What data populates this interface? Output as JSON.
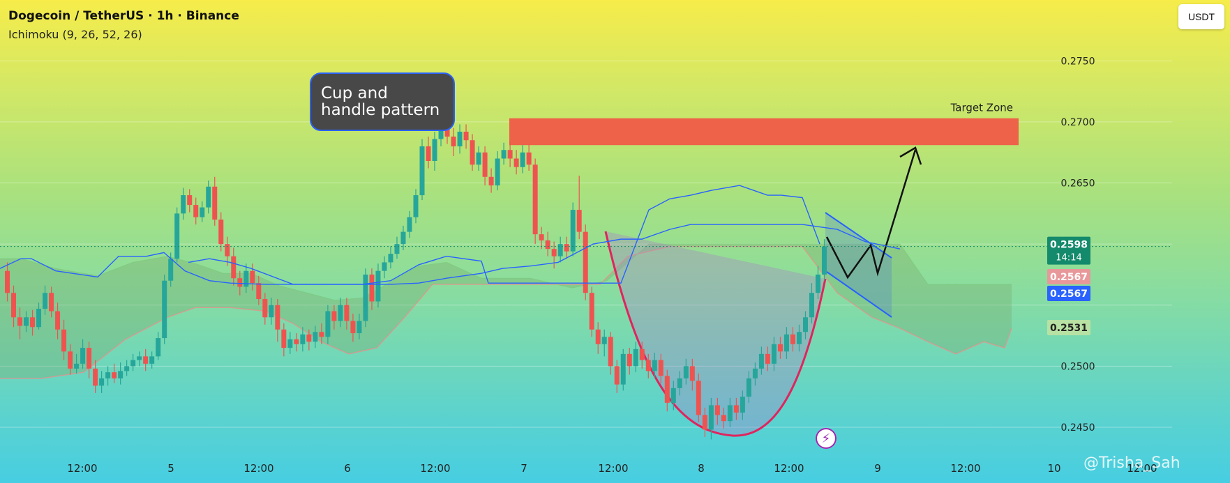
{
  "header": {
    "title": "Dogecoin / TetherUS · 1h · Binance",
    "indicator": "Ichimoku (9, 26, 52, 26)"
  },
  "currency_button": "USDT",
  "callout": "Cup and handle pattern",
  "target_label": "Target Zone",
  "watermark": "@Trisha_Sah",
  "flash_icon": "lightning-bolt-icon",
  "colors": {
    "up": "#26a69a",
    "down": "#ef5350",
    "target_zone": "#ef5b47",
    "cup": "#e0245e",
    "ichimoku_line": "#2962ff"
  },
  "chart_data": {
    "type": "candlestick",
    "ylim": [
      0.243,
      0.2785
    ],
    "y_ticks": [
      "0.2750",
      "0.2700",
      "0.2650",
      "0.2500",
      "0.2450"
    ],
    "x_ticks": [
      "12:00",
      "5",
      "12:00",
      "6",
      "12:00",
      "7",
      "12:00",
      "8",
      "12:00",
      "9",
      "12:00",
      "10",
      "12:00"
    ],
    "price_labels": [
      {
        "value": 0.2598,
        "text": "0.2598",
        "sub": "14:14",
        "color": "#138a6b"
      },
      {
        "value": 0.2567,
        "text": "0.2567",
        "color": "#e8989a"
      },
      {
        "value": 0.2567,
        "text": "0.2567",
        "color": "#2962ff"
      },
      {
        "value": 0.2531,
        "text": "0.2531",
        "color": "#b8e2a4"
      }
    ],
    "target_zone": {
      "from": 0.2681,
      "to": 0.2703
    },
    "candles": [
      [
        0.2578,
        0.256,
        0.2585,
        0.2553
      ],
      [
        0.256,
        0.254,
        0.2566,
        0.2532
      ],
      [
        0.254,
        0.2533,
        0.2548,
        0.2522
      ],
      [
        0.2533,
        0.254,
        0.2545,
        0.2528
      ],
      [
        0.254,
        0.2532,
        0.2546,
        0.2525
      ],
      [
        0.2532,
        0.2547,
        0.2552,
        0.253
      ],
      [
        0.2547,
        0.256,
        0.2566,
        0.2542
      ],
      [
        0.256,
        0.2545,
        0.2565,
        0.254
      ],
      [
        0.2545,
        0.253,
        0.2552,
        0.2522
      ],
      [
        0.253,
        0.2512,
        0.2538,
        0.2505
      ],
      [
        0.2512,
        0.2498,
        0.2518,
        0.2493
      ],
      [
        0.2498,
        0.2502,
        0.251,
        0.2494
      ],
      [
        0.2502,
        0.2515,
        0.2522,
        0.2498
      ],
      [
        0.2515,
        0.2498,
        0.252,
        0.249
      ],
      [
        0.2498,
        0.2484,
        0.2505,
        0.2478
      ],
      [
        0.2484,
        0.249,
        0.2496,
        0.2478
      ],
      [
        0.249,
        0.2495,
        0.25,
        0.2484
      ],
      [
        0.2495,
        0.249,
        0.2502,
        0.2486
      ],
      [
        0.249,
        0.2496,
        0.2503,
        0.2485
      ],
      [
        0.2496,
        0.25,
        0.2505,
        0.2492
      ],
      [
        0.25,
        0.2505,
        0.251,
        0.2496
      ],
      [
        0.2505,
        0.2508,
        0.2512,
        0.25
      ],
      [
        0.2508,
        0.2502,
        0.2514,
        0.2496
      ],
      [
        0.2502,
        0.2508,
        0.2512,
        0.2498
      ],
      [
        0.2508,
        0.2523,
        0.2528,
        0.2505
      ],
      [
        0.2523,
        0.257,
        0.2575,
        0.2518
      ],
      [
        0.257,
        0.2588,
        0.2593,
        0.2565
      ],
      [
        0.2588,
        0.2625,
        0.263,
        0.2585
      ],
      [
        0.2625,
        0.264,
        0.2646,
        0.262
      ],
      [
        0.264,
        0.2632,
        0.2645,
        0.2626
      ],
      [
        0.2632,
        0.2622,
        0.2638,
        0.2616
      ],
      [
        0.2622,
        0.263,
        0.2635,
        0.2618
      ],
      [
        0.263,
        0.2647,
        0.2652,
        0.2625
      ],
      [
        0.2647,
        0.262,
        0.2655,
        0.2615
      ],
      [
        0.262,
        0.26,
        0.2626,
        0.2594
      ],
      [
        0.26,
        0.259,
        0.2606,
        0.2582
      ],
      [
        0.259,
        0.2572,
        0.2597,
        0.2566
      ],
      [
        0.2572,
        0.2565,
        0.2578,
        0.2558
      ],
      [
        0.2565,
        0.2578,
        0.2584,
        0.256
      ],
      [
        0.2578,
        0.2568,
        0.2584,
        0.2562
      ],
      [
        0.2568,
        0.2555,
        0.2574,
        0.255
      ],
      [
        0.2555,
        0.254,
        0.256,
        0.2534
      ],
      [
        0.254,
        0.255,
        0.2556,
        0.2534
      ],
      [
        0.255,
        0.253,
        0.2555,
        0.252
      ],
      [
        0.253,
        0.2515,
        0.2535,
        0.2508
      ],
      [
        0.2515,
        0.2522,
        0.2528,
        0.251
      ],
      [
        0.2522,
        0.2518,
        0.2527,
        0.2512
      ],
      [
        0.2518,
        0.2526,
        0.2532,
        0.2512
      ],
      [
        0.2526,
        0.252,
        0.253,
        0.2513
      ],
      [
        0.252,
        0.2528,
        0.2533,
        0.2515
      ],
      [
        0.2528,
        0.2524,
        0.2535,
        0.2518
      ],
      [
        0.2524,
        0.2545,
        0.255,
        0.2518
      ],
      [
        0.2545,
        0.2537,
        0.255,
        0.253
      ],
      [
        0.2537,
        0.255,
        0.2556,
        0.2532
      ],
      [
        0.255,
        0.2537,
        0.2556,
        0.253
      ],
      [
        0.2537,
        0.2527,
        0.2543,
        0.252
      ],
      [
        0.2527,
        0.2537,
        0.2543,
        0.2522
      ],
      [
        0.2537,
        0.2575,
        0.258,
        0.2532
      ],
      [
        0.2575,
        0.2553,
        0.258,
        0.2546
      ],
      [
        0.2553,
        0.2578,
        0.2584,
        0.2548
      ],
      [
        0.2578,
        0.2585,
        0.259,
        0.2572
      ],
      [
        0.2585,
        0.2592,
        0.2598,
        0.258
      ],
      [
        0.2592,
        0.26,
        0.2606,
        0.2588
      ],
      [
        0.26,
        0.261,
        0.2615,
        0.2595
      ],
      [
        0.261,
        0.2622,
        0.2627,
        0.2605
      ],
      [
        0.2622,
        0.264,
        0.2645,
        0.2617
      ],
      [
        0.264,
        0.268,
        0.2686,
        0.2636
      ],
      [
        0.268,
        0.2668,
        0.2688,
        0.2662
      ],
      [
        0.2668,
        0.2686,
        0.2692,
        0.266
      ],
      [
        0.2686,
        0.2698,
        0.2704,
        0.268
      ],
      [
        0.2698,
        0.2688,
        0.2704,
        0.2682
      ],
      [
        0.2688,
        0.268,
        0.2695,
        0.2672
      ],
      [
        0.268,
        0.2692,
        0.2698,
        0.2674
      ],
      [
        0.2692,
        0.2685,
        0.2698,
        0.2678
      ],
      [
        0.2685,
        0.2665,
        0.269,
        0.266
      ],
      [
        0.2665,
        0.2675,
        0.268,
        0.266
      ],
      [
        0.2675,
        0.2655,
        0.268,
        0.2648
      ],
      [
        0.2655,
        0.2648,
        0.2662,
        0.2642
      ],
      [
        0.2648,
        0.267,
        0.2676,
        0.2644
      ],
      [
        0.267,
        0.2677,
        0.2683,
        0.2665
      ],
      [
        0.2677,
        0.267,
        0.2684,
        0.2663
      ],
      [
        0.267,
        0.2663,
        0.2677,
        0.2657
      ],
      [
        0.2663,
        0.2675,
        0.2681,
        0.2658
      ],
      [
        0.2675,
        0.2665,
        0.2682,
        0.266
      ],
      [
        0.2665,
        0.2608,
        0.267,
        0.26
      ],
      [
        0.2608,
        0.2603,
        0.2614,
        0.2596
      ],
      [
        0.2603,
        0.2596,
        0.261,
        0.259
      ],
      [
        0.2596,
        0.259,
        0.2602,
        0.258
      ],
      [
        0.259,
        0.26,
        0.2606,
        0.2585
      ],
      [
        0.26,
        0.2594,
        0.2606,
        0.2588
      ],
      [
        0.2594,
        0.2628,
        0.2634,
        0.259
      ],
      [
        0.2628,
        0.261,
        0.2656,
        0.2604
      ],
      [
        0.261,
        0.256,
        0.2616,
        0.2554
      ],
      [
        0.256,
        0.253,
        0.2565,
        0.2524
      ],
      [
        0.253,
        0.2518,
        0.2536,
        0.251
      ],
      [
        0.2518,
        0.2524,
        0.253,
        0.2508
      ],
      [
        0.2524,
        0.25,
        0.2528,
        0.2493
      ],
      [
        0.25,
        0.2485,
        0.2505,
        0.2478
      ],
      [
        0.2485,
        0.251,
        0.2514,
        0.248
      ],
      [
        0.251,
        0.25,
        0.2515,
        0.2493
      ],
      [
        0.25,
        0.2514,
        0.252,
        0.2495
      ],
      [
        0.2514,
        0.2505,
        0.252,
        0.2498
      ],
      [
        0.2505,
        0.2496,
        0.251,
        0.249
      ],
      [
        0.2496,
        0.2505,
        0.2511,
        0.249
      ],
      [
        0.2505,
        0.2492,
        0.251,
        0.2486
      ],
      [
        0.2492,
        0.247,
        0.2497,
        0.2463
      ],
      [
        0.247,
        0.2482,
        0.2488,
        0.2464
      ],
      [
        0.2482,
        0.249,
        0.2496,
        0.2476
      ],
      [
        0.249,
        0.25,
        0.2506,
        0.2485
      ],
      [
        0.25,
        0.2488,
        0.2506,
        0.248
      ],
      [
        0.2488,
        0.246,
        0.2494,
        0.2454
      ],
      [
        0.246,
        0.2448,
        0.2466,
        0.2442
      ],
      [
        0.2448,
        0.2468,
        0.2474,
        0.244
      ],
      [
        0.2468,
        0.246,
        0.2474,
        0.2452
      ],
      [
        0.246,
        0.2455,
        0.2466,
        0.2449
      ],
      [
        0.2455,
        0.2468,
        0.2474,
        0.245
      ],
      [
        0.2468,
        0.2462,
        0.2474,
        0.2456
      ],
      [
        0.2462,
        0.2475,
        0.248,
        0.2456
      ],
      [
        0.2475,
        0.249,
        0.2496,
        0.247
      ],
      [
        0.249,
        0.2498,
        0.2503,
        0.2484
      ],
      [
        0.2498,
        0.251,
        0.2516,
        0.2493
      ],
      [
        0.251,
        0.2502,
        0.2516,
        0.2496
      ],
      [
        0.2502,
        0.2518,
        0.2524,
        0.2496
      ],
      [
        0.2518,
        0.2512,
        0.2524,
        0.2506
      ],
      [
        0.2512,
        0.2526,
        0.2532,
        0.2506
      ],
      [
        0.2526,
        0.2518,
        0.2532,
        0.2512
      ],
      [
        0.2518,
        0.2528,
        0.2534,
        0.2512
      ],
      [
        0.2528,
        0.254,
        0.2545,
        0.2522
      ],
      [
        0.254,
        0.256,
        0.2568,
        0.2535
      ],
      [
        0.256,
        0.2575,
        0.2582,
        0.2555
      ],
      [
        0.2575,
        0.2598,
        0.2604,
        0.257
      ]
    ],
    "ichimoku": {
      "conversion": [
        [
          0,
          0.258
        ],
        [
          30,
          0.2588
        ],
        [
          45,
          0.2588
        ],
        [
          80,
          0.2578
        ],
        [
          140,
          0.2573
        ],
        [
          170,
          0.259
        ],
        [
          210,
          0.259
        ],
        [
          235,
          0.2593
        ],
        [
          265,
          0.2578
        ],
        [
          300,
          0.257
        ],
        [
          330,
          0.2568
        ],
        [
          380,
          0.2567
        ],
        [
          460,
          0.2567
        ],
        [
          520,
          0.2567
        ],
        [
          560,
          0.257
        ],
        [
          600,
          0.2583
        ],
        [
          640,
          0.259
        ],
        [
          690,
          0.2586
        ],
        [
          700,
          0.2568
        ],
        [
          760,
          0.2568
        ],
        [
          850,
          0.2568
        ],
        [
          890,
          0.2568
        ],
        [
          930,
          0.2628
        ],
        [
          960,
          0.2637
        ],
        [
          990,
          0.264
        ],
        [
          1020,
          0.2644
        ],
        [
          1060,
          0.2648
        ],
        [
          1080,
          0.2644
        ],
        [
          1100,
          0.264
        ],
        [
          1120,
          0.264
        ],
        [
          1150,
          0.2638
        ],
        [
          1175,
          0.26
        ]
      ],
      "baseline": [
        [
          270,
          0.2585
        ],
        [
          300,
          0.2588
        ],
        [
          330,
          0.2585
        ],
        [
          360,
          0.258
        ],
        [
          420,
          0.2567
        ],
        [
          500,
          0.2567
        ],
        [
          560,
          0.2567
        ],
        [
          600,
          0.2568
        ],
        [
          640,
          0.2572
        ],
        [
          690,
          0.2576
        ],
        [
          720,
          0.258
        ],
        [
          760,
          0.2582
        ],
        [
          800,
          0.2585
        ],
        [
          850,
          0.26
        ],
        [
          890,
          0.2604
        ],
        [
          920,
          0.2604
        ],
        [
          960,
          0.2612
        ],
        [
          990,
          0.2616
        ],
        [
          1050,
          0.2616
        ],
        [
          1150,
          0.2616
        ],
        [
          1200,
          0.2612
        ],
        [
          1240,
          0.2602
        ],
        [
          1290,
          0.2596
        ]
      ],
      "span_a": [
        [
          0,
          0.2588
        ],
        [
          30,
          0.2588
        ],
        [
          80,
          0.258
        ],
        [
          140,
          0.2574
        ],
        [
          190,
          0.2585
        ],
        [
          240,
          0.259
        ],
        [
          280,
          0.2584
        ],
        [
          320,
          0.2576
        ],
        [
          360,
          0.2576
        ],
        [
          400,
          0.2566
        ],
        [
          440,
          0.256
        ],
        [
          480,
          0.2554
        ],
        [
          520,
          0.2556
        ],
        [
          560,
          0.2569
        ],
        [
          600,
          0.2582
        ],
        [
          640,
          0.2585
        ],
        [
          690,
          0.2572
        ],
        [
          760,
          0.2572
        ],
        [
          820,
          0.2564
        ],
        [
          870,
          0.257
        ],
        [
          930,
          0.26
        ],
        [
          990,
          0.26
        ],
        [
          1040,
          0.26
        ],
        [
          1080,
          0.26
        ],
        [
          1110,
          0.26
        ],
        [
          1140,
          0.26
        ],
        [
          1160,
          0.26
        ],
        [
          1180,
          0.26
        ],
        [
          1200,
          0.26
        ],
        [
          1250,
          0.26
        ],
        [
          1290,
          0.26
        ],
        [
          1330,
          0.2567
        ],
        [
          1370,
          0.2567
        ],
        [
          1410,
          0.2567
        ],
        [
          1450,
          0.2567
        ]
      ],
      "span_b": [
        [
          0,
          0.249
        ],
        [
          60,
          0.249
        ],
        [
          120,
          0.2495
        ],
        [
          180,
          0.2522
        ],
        [
          240,
          0.254
        ],
        [
          280,
          0.2548
        ],
        [
          330,
          0.2548
        ],
        [
          380,
          0.2545
        ],
        [
          420,
          0.2535
        ],
        [
          460,
          0.252
        ],
        [
          500,
          0.251
        ],
        [
          540,
          0.2515
        ],
        [
          580,
          0.254
        ],
        [
          620,
          0.2567
        ],
        [
          700,
          0.2567
        ],
        [
          760,
          0.2567
        ],
        [
          800,
          0.2567
        ],
        [
          860,
          0.2567
        ],
        [
          900,
          0.259
        ],
        [
          960,
          0.2598
        ],
        [
          1040,
          0.2598
        ],
        [
          1100,
          0.2598
        ],
        [
          1150,
          0.2598
        ],
        [
          1200,
          0.256
        ],
        [
          1250,
          0.254
        ],
        [
          1290,
          0.2531
        ],
        [
          1330,
          0.252
        ],
        [
          1370,
          0.251
        ],
        [
          1410,
          0.252
        ],
        [
          1440,
          0.2515
        ],
        [
          1450,
          0.2531
        ]
      ]
    }
  }
}
